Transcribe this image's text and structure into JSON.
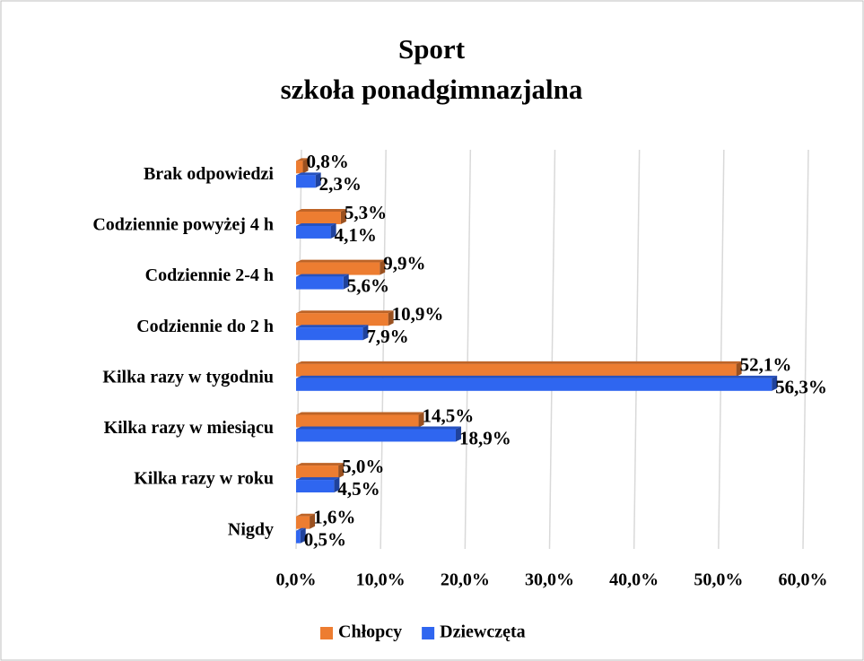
{
  "chart_data": {
    "type": "bar",
    "orientation": "horizontal",
    "title": "Sport",
    "subtitle": "szkoła ponadgimnazjalna",
    "categories": [
      "Brak odpowiedzi",
      "Codziennie powyżej 4 h",
      "Codziennie 2-4 h",
      "Codziennie do 2 h",
      "Kilka razy w tygodniu",
      "Kilka razy w miesiącu",
      "Kilka razy w roku",
      "Nigdy"
    ],
    "series": [
      {
        "name": "Chłopcy",
        "color": "#ed7d31",
        "values": [
          0.8,
          5.3,
          9.9,
          10.9,
          52.1,
          14.5,
          5.0,
          1.6
        ],
        "value_labels": [
          "0,8%",
          "5,3%",
          "9,9%",
          "10,9%",
          "52,1%",
          "14,5%",
          "5,0%",
          "1,6%"
        ]
      },
      {
        "name": "Dziewczęta",
        "color": "#2f66f0",
        "values": [
          2.3,
          4.1,
          5.6,
          7.9,
          56.3,
          18.9,
          4.5,
          0.5
        ],
        "value_labels": [
          "2,3%",
          "4,1%",
          "5,6%",
          "7,9%",
          "56,3%",
          "18,9%",
          "4,5%",
          "0,5%"
        ]
      }
    ],
    "xlim": [
      0,
      60
    ],
    "xticks": [
      {
        "value": 0,
        "label": "0,0%"
      },
      {
        "value": 10,
        "label": "10,0%"
      },
      {
        "value": 20,
        "label": "20,0%"
      },
      {
        "value": 30,
        "label": "30,0%"
      },
      {
        "value": 40,
        "label": "40,0%"
      },
      {
        "value": 50,
        "label": "50,0%"
      },
      {
        "value": 60,
        "label": "60,0%"
      }
    ],
    "grid": true,
    "legend": "bottom"
  }
}
